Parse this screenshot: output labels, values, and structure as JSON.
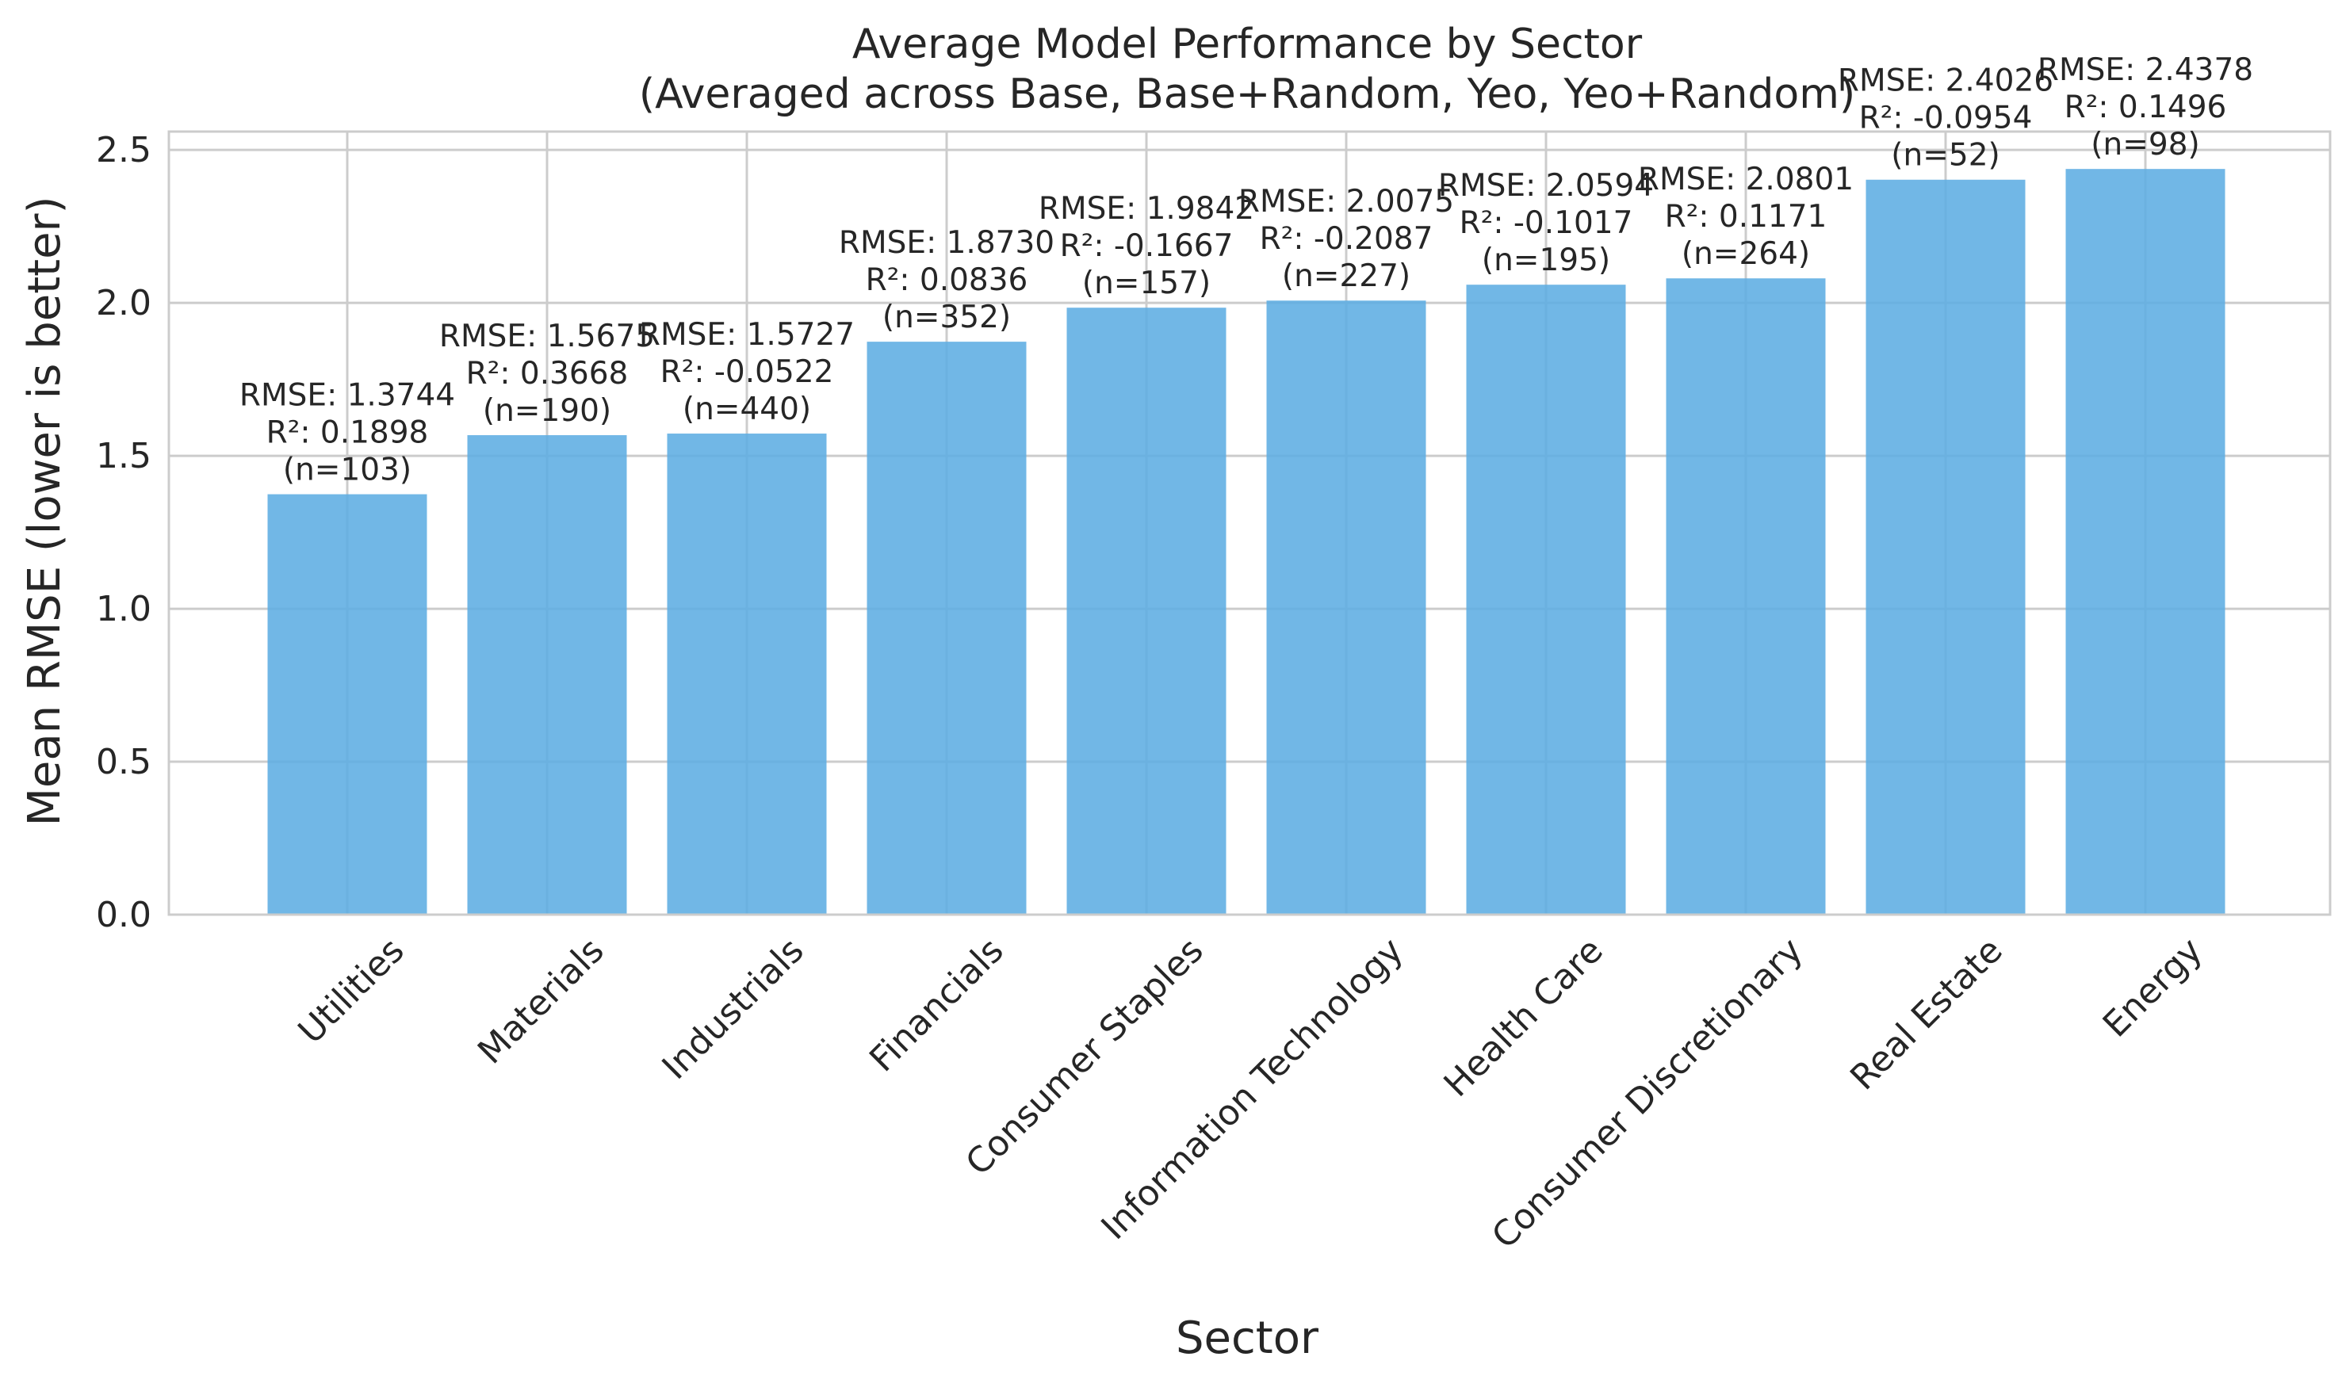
{
  "chart_data": {
    "type": "bar",
    "title": "Average Model Performance by Sector",
    "subtitle": "(Averaged across Base, Base+Random, Yeo, Yeo+Random)",
    "xlabel": "Sector",
    "ylabel": "Mean RMSE (lower is better)",
    "ylim": [
      0,
      2.56
    ],
    "yticks": [
      "0.0",
      "0.5",
      "1.0",
      "1.5",
      "2.0",
      "2.5"
    ],
    "grid": true,
    "legend": "none",
    "bar_color": "#5DADE2",
    "categories": [
      "Utilities",
      "Materials",
      "Industrials",
      "Financials",
      "Consumer Staples",
      "Information Technology",
      "Health Care",
      "Consumer Discretionary",
      "Real Estate",
      "Energy"
    ],
    "values": [
      1.3744,
      1.5675,
      1.5727,
      1.873,
      1.9842,
      2.0075,
      2.0594,
      2.0801,
      2.4026,
      2.4378
    ],
    "annotations": [
      [
        "RMSE: 1.3744",
        "R²: 0.1898",
        "(n=103)"
      ],
      [
        "RMSE: 1.5675",
        "R²: 0.3668",
        "(n=190)"
      ],
      [
        "RMSE: 1.5727",
        "R²: -0.0522",
        "(n=440)"
      ],
      [
        "RMSE: 1.8730",
        "R²: 0.0836",
        "(n=352)"
      ],
      [
        "RMSE: 1.9842",
        "R²: -0.1667",
        "(n=157)"
      ],
      [
        "RMSE: 2.0075",
        "R²: -0.2087",
        "(n=227)"
      ],
      [
        "RMSE: 2.0594",
        "R²: -0.1017",
        "(n=195)"
      ],
      [
        "RMSE: 2.0801",
        "R²: 0.1171",
        "(n=264)"
      ],
      [
        "RMSE: 2.4026",
        "R²: -0.0954",
        "(n=52)"
      ],
      [
        "RMSE: 2.4378",
        "R²: 0.1496",
        "(n=98)"
      ]
    ]
  }
}
